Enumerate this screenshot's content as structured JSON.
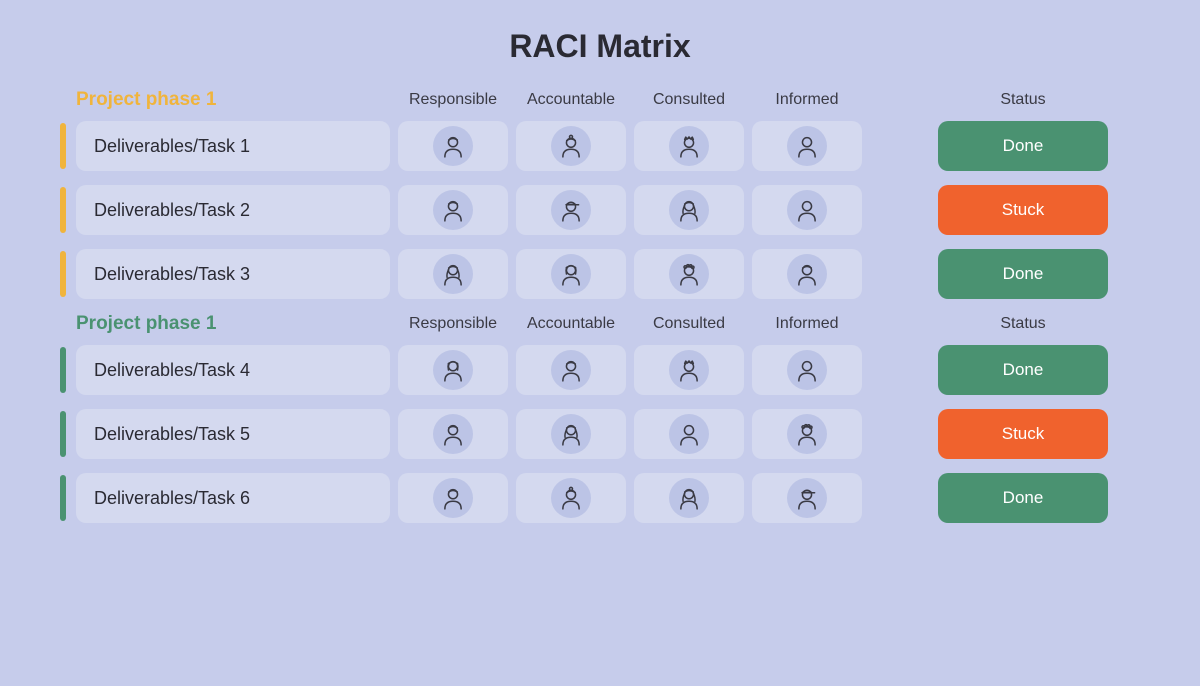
{
  "title": "RACI Matrix",
  "columns": {
    "responsible": "Responsible",
    "accountable": "Accountable",
    "consulted": "Consulted",
    "informed": "Informed",
    "status": "Status"
  },
  "colors": {
    "background": "#c6cceb",
    "cell_bg": "#d4d9ef",
    "avatar_bg": "#bcc4e6",
    "text": "#2a2a33",
    "status_done_bg": "#4a9271",
    "status_stuck_bg": "#f0622d",
    "status_text": "#ffffff"
  },
  "phases": [
    {
      "title": "Project phase 1",
      "title_color": "#f0b43c",
      "accent_color": "#f0b43c",
      "rows": [
        {
          "task": "Deliverables/Task 1",
          "avatars": [
            "male-short",
            "female-bun",
            "male-spiky",
            "male-bald"
          ],
          "status": {
            "label": "Done",
            "bg": "#4a9271"
          }
        },
        {
          "task": "Deliverables/Task 2",
          "avatars": [
            "male-short",
            "male-cap",
            "female-long",
            "male-bald"
          ],
          "status": {
            "label": "Stuck",
            "bg": "#f0622d"
          }
        },
        {
          "task": "Deliverables/Task 3",
          "avatars": [
            "female-long",
            "female-bob",
            "male-curly",
            "male-short"
          ],
          "status": {
            "label": "Done",
            "bg": "#4a9271"
          }
        }
      ]
    },
    {
      "title": "Project phase 1",
      "title_color": "#4a9271",
      "accent_color": "#4a9271",
      "rows": [
        {
          "task": "Deliverables/Task 4",
          "avatars": [
            "female-bob",
            "male-short",
            "male-spiky",
            "male-bald"
          ],
          "status": {
            "label": "Done",
            "bg": "#4a9271"
          }
        },
        {
          "task": "Deliverables/Task 5",
          "avatars": [
            "male-short",
            "female-long",
            "male-bald",
            "male-curly"
          ],
          "status": {
            "label": "Stuck",
            "bg": "#f0622d"
          }
        },
        {
          "task": "Deliverables/Task 6",
          "avatars": [
            "male-short",
            "female-bun",
            "female-long",
            "male-cap"
          ],
          "status": {
            "label": "Done",
            "bg": "#4a9271"
          }
        }
      ]
    }
  ]
}
